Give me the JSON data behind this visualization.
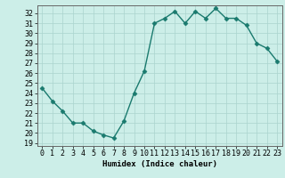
{
  "x": [
    0,
    1,
    2,
    3,
    4,
    5,
    6,
    7,
    8,
    9,
    10,
    11,
    12,
    13,
    14,
    15,
    16,
    17,
    18,
    19,
    20,
    21,
    22,
    23
  ],
  "y": [
    24.5,
    23.2,
    22.2,
    21.0,
    21.0,
    20.2,
    19.8,
    19.5,
    21.2,
    24.0,
    26.2,
    31.0,
    31.5,
    32.2,
    31.0,
    32.2,
    31.5,
    32.5,
    31.5,
    31.5,
    30.8,
    29.0,
    28.5,
    27.2
  ],
  "line_color": "#1a7a6e",
  "marker": "D",
  "marker_size": 2.5,
  "bg_color": "#cceee8",
  "grid_color": "#aad4ce",
  "xlabel": "Humidex (Indice chaleur)",
  "ylim": [
    18.7,
    32.8
  ],
  "xlim": [
    -0.5,
    23.5
  ],
  "yticks": [
    19,
    20,
    21,
    22,
    23,
    24,
    25,
    26,
    27,
    28,
    29,
    30,
    31,
    32
  ],
  "xticks": [
    0,
    1,
    2,
    3,
    4,
    5,
    6,
    7,
    8,
    9,
    10,
    11,
    12,
    13,
    14,
    15,
    16,
    17,
    18,
    19,
    20,
    21,
    22,
    23
  ],
  "label_fontsize": 6.5,
  "tick_fontsize": 6,
  "line_width": 1.0
}
